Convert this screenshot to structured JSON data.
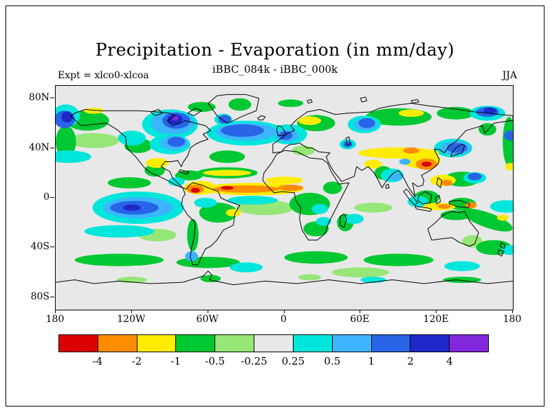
{
  "figure": {
    "title": "Precipitation - Evaporation (in mm/day)",
    "subtitle": "iBBC_084k - iBBC_000k",
    "experiment_label": "Expt = xlco0-xlcoa",
    "season_label": "JJA"
  },
  "chart_data": {
    "type": "heatmap",
    "title": "Precipitation - Evaporation (in mm/day)",
    "subtitle": "iBBC_084k - iBBC_000k",
    "experiment": "xlco0-xlcoa",
    "season": "JJA",
    "units": "mm/day",
    "lon_range": [
      -180,
      180
    ],
    "lat_range": [
      -90,
      90
    ],
    "x_ticks": [
      {
        "label": "180",
        "lon": -180
      },
      {
        "label": "120W",
        "lon": -120
      },
      {
        "label": "60W",
        "lon": -60
      },
      {
        "label": "0",
        "lon": 0
      },
      {
        "label": "60E",
        "lon": 60
      },
      {
        "label": "120E",
        "lon": 120
      },
      {
        "label": "180",
        "lon": 180
      }
    ],
    "y_ticks": [
      {
        "label": "80N",
        "lat": 80
      },
      {
        "label": "40N",
        "lat": 40
      },
      {
        "label": "0",
        "lat": 0
      },
      {
        "label": "40S",
        "lat": -40
      },
      {
        "label": "80S",
        "lat": -80
      }
    ],
    "levels": [
      -4,
      -2,
      -1,
      -0.5,
      -0.25,
      0.25,
      0.5,
      1,
      2,
      4
    ],
    "colorbar_labels": [
      "-4",
      "-2",
      "-1",
      "-0.5",
      "-0.25",
      "0.25",
      "0.5",
      "1",
      "2",
      "4"
    ],
    "palette": [
      "#dc0000",
      "#ff8c00",
      "#ffec00",
      "#00c832",
      "#96e678",
      "#e8e8e8",
      "#00e6dc",
      "#3cb4ff",
      "#2864e6",
      "#1e28c8",
      "#8228dc"
    ],
    "neutral_color": "#e8e8e8",
    "legend_position": "bottom",
    "anomaly_regions": [
      [
        -150,
        46,
        40,
        12,
        -0.35
      ],
      [
        -15,
        -8,
        45,
        12,
        -0.35
      ],
      [
        60,
        -60,
        45,
        8,
        -0.35
      ],
      [
        148,
        -35,
        16,
        10,
        -0.35
      ],
      [
        15,
        38,
        18,
        8,
        -0.35
      ],
      [
        70,
        -8,
        30,
        8,
        -0.35
      ],
      [
        20,
        -64,
        18,
        5,
        -0.35
      ],
      [
        -120,
        -66,
        24,
        5,
        -0.35
      ],
      [
        -100,
        -30,
        30,
        10,
        -0.35
      ],
      [
        -155,
        62,
        34,
        16,
        -0.7
      ],
      [
        -172,
        45,
        16,
        26,
        -0.7
      ],
      [
        -115,
        42,
        22,
        12,
        -0.7
      ],
      [
        -35,
        75,
        18,
        10,
        -0.7
      ],
      [
        25,
        60,
        30,
        13,
        -0.7
      ],
      [
        90,
        65,
        52,
        14,
        -0.7
      ],
      [
        135,
        68,
        30,
        10,
        -0.7
      ],
      [
        160,
        55,
        14,
        10,
        -0.7
      ],
      [
        -45,
        33,
        28,
        10,
        -0.7
      ],
      [
        -45,
        20,
        48,
        9,
        -0.7
      ],
      [
        -75,
        18,
        22,
        8,
        -0.7
      ],
      [
        -102,
        22,
        16,
        10,
        -0.7
      ],
      [
        -122,
        12,
        34,
        9,
        -0.7
      ],
      [
        -52,
        -12,
        30,
        16,
        -0.7
      ],
      [
        -72,
        -30,
        9,
        26,
        -0.7
      ],
      [
        20,
        -5,
        32,
        18,
        -0.7
      ],
      [
        25,
        -25,
        20,
        12,
        -0.7
      ],
      [
        38,
        8,
        15,
        10,
        -0.7
      ],
      [
        48,
        -20,
        13,
        14,
        -0.7
      ],
      [
        78,
        20,
        14,
        11,
        -0.7
      ],
      [
        112,
        0,
        20,
        12,
        -0.7
      ],
      [
        140,
        -5,
        22,
        10,
        -0.7
      ],
      [
        140,
        15,
        28,
        12,
        -0.7
      ],
      [
        160,
        -18,
        42,
        12,
        -0.7,
        20
      ],
      [
        165,
        -40,
        28,
        12,
        -0.7
      ],
      [
        -60,
        -52,
        50,
        9,
        -0.7
      ],
      [
        25,
        -48,
        50,
        10,
        -0.7
      ],
      [
        90,
        -50,
        55,
        10,
        -0.7
      ],
      [
        -130,
        -50,
        70,
        10,
        -0.7
      ],
      [
        177,
        45,
        10,
        40,
        -0.7
      ],
      [
        135,
        -14,
        24,
        8,
        -0.7
      ],
      [
        -65,
        73,
        22,
        8,
        -0.7
      ],
      [
        5,
        76,
        20,
        6,
        -0.7
      ],
      [
        -58,
        -65,
        16,
        6,
        -0.7
      ],
      [
        140,
        -66,
        30,
        5,
        -0.7
      ],
      [
        -90,
        59,
        44,
        24,
        0.35
      ],
      [
        -30,
        52,
        62,
        20,
        0.35
      ],
      [
        3,
        51,
        30,
        16,
        0.35
      ],
      [
        63,
        59,
        26,
        14,
        0.35
      ],
      [
        -90,
        43,
        32,
        16,
        0.35
      ],
      [
        -120,
        48,
        22,
        12,
        0.35
      ],
      [
        -170,
        33,
        36,
        10,
        0.35
      ],
      [
        -115,
        -8,
        72,
        26,
        0.35
      ],
      [
        -130,
        -27,
        55,
        10,
        0.35
      ],
      [
        -25,
        -2,
        40,
        7,
        0.35
      ],
      [
        -62,
        -4,
        18,
        8,
        0.35
      ],
      [
        -85,
        13,
        13,
        7,
        0.35
      ],
      [
        28,
        -9,
        13,
        8,
        0.35
      ],
      [
        31,
        -19,
        12,
        7,
        0.35
      ],
      [
        55,
        -17,
        15,
        8,
        0.35
      ],
      [
        85,
        18,
        18,
        11,
        0.35
      ],
      [
        133,
        40,
        30,
        15,
        0.35
      ],
      [
        150,
        16,
        18,
        9,
        0.35
      ],
      [
        175,
        -7,
        26,
        10,
        0.35
      ],
      [
        105,
        -3,
        16,
        9,
        0.35
      ],
      [
        178,
        -42,
        14,
        8,
        0.35
      ],
      [
        140,
        -55,
        28,
        8,
        0.35
      ],
      [
        -30,
        -56,
        26,
        8,
        0.35
      ],
      [
        50,
        43,
        13,
        8,
        0.35
      ],
      [
        -48,
        63,
        14,
        9,
        0.35
      ],
      [
        -172,
        66,
        22,
        18,
        0.35
      ],
      [
        160,
        68,
        28,
        12,
        0.35
      ],
      [
        70,
        -66,
        20,
        5,
        0.35
      ],
      [
        -45,
        20,
        38,
        5,
        -1.5
      ],
      [
        20,
        62,
        18,
        7,
        -1.5
      ],
      [
        100,
        68,
        20,
        6,
        -1.5
      ],
      [
        -150,
        70,
        15,
        5,
        -1.5
      ],
      [
        -100,
        28,
        18,
        8,
        -1.5
      ],
      [
        -25,
        7,
        80,
        10,
        -1.5
      ],
      [
        -66,
        8,
        26,
        11,
        -1.5
      ],
      [
        0,
        14,
        30,
        6,
        -1.5
      ],
      [
        90,
        36,
        64,
        9,
        -1.5
      ],
      [
        108,
        30,
        30,
        13,
        -1.5
      ],
      [
        125,
        14,
        20,
        9,
        -1.5
      ],
      [
        122,
        -7,
        26,
        6,
        -1.5
      ],
      [
        172,
        -16,
        9,
        5,
        -1.5
      ],
      [
        70,
        27,
        14,
        7,
        -1.5
      ],
      [
        178,
        25,
        8,
        6,
        -1.5
      ],
      [
        -40,
        -12,
        12,
        6,
        -1.5
      ],
      [
        -30,
        53,
        48,
        14,
        0.7
      ],
      [
        -115,
        -8,
        55,
        17,
        0.7
      ],
      [
        2,
        50,
        18,
        10,
        0.7
      ],
      [
        135,
        40,
        24,
        11,
        0.7
      ],
      [
        88,
        17,
        11,
        6,
        0.7
      ],
      [
        -73,
        -47,
        10,
        8,
        0.7
      ],
      [
        64,
        59,
        18,
        10,
        0.7
      ],
      [
        -87,
        44,
        22,
        11,
        0.7
      ],
      [
        -88,
        60,
        34,
        18,
        0.7
      ],
      [
        95,
        29,
        9,
        5,
        0.7
      ],
      [
        -30,
        7,
        52,
        6,
        -3
      ],
      [
        -70,
        7,
        14,
        7,
        -3
      ],
      [
        5,
        8,
        20,
        5,
        -3
      ],
      [
        100,
        38,
        13,
        5,
        -3
      ],
      [
        112,
        27,
        17,
        9,
        -3
      ],
      [
        128,
        12,
        9,
        5,
        -3
      ],
      [
        126,
        -7,
        10,
        4,
        -3
      ],
      [
        147,
        -6,
        9,
        5,
        -3
      ],
      [
        -33,
        54,
        34,
        10,
        1.5
      ],
      [
        -85,
        62,
        22,
        13,
        1.5
      ],
      [
        -47,
        63,
        10,
        7,
        1.5
      ],
      [
        -85,
        45,
        14,
        8,
        1.5
      ],
      [
        -118,
        -8,
        38,
        11,
        1.5
      ],
      [
        1,
        50,
        11,
        7,
        1.5
      ],
      [
        65,
        60,
        13,
        8,
        1.5
      ],
      [
        136,
        40,
        16,
        8,
        1.5
      ],
      [
        -173,
        63,
        16,
        14,
        1.5
      ],
      [
        160,
        69,
        18,
        8,
        1.5
      ],
      [
        150,
        17,
        11,
        6,
        1.5
      ],
      [
        178,
        50,
        10,
        8,
        1.5
      ],
      [
        50,
        43,
        7,
        5,
        1.5
      ],
      [
        -45,
        8,
        10,
        3,
        -5
      ],
      [
        -70,
        6,
        7,
        4,
        -5
      ],
      [
        112,
        27,
        8,
        4,
        -5
      ],
      [
        -86,
        63,
        12,
        8,
        3
      ],
      [
        -171,
        65,
        9,
        9,
        3
      ],
      [
        -120,
        -8,
        14,
        5,
        3
      ],
      [
        162,
        70,
        10,
        5,
        3
      ],
      [
        -86,
        64,
        5,
        4,
        5
      ]
    ]
  }
}
